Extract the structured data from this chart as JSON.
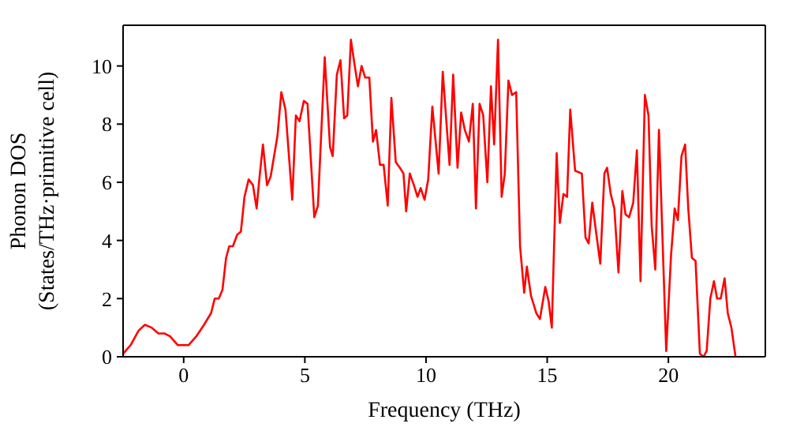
{
  "chart_data": {
    "type": "line",
    "xlabel": "Frequency (THz)",
    "ylabel": "Phonon DOS\n(States/THz·primitive cell)",
    "xlim": [
      -2.5,
      24
    ],
    "xticks": [
      0,
      5,
      10,
      15,
      20
    ],
    "ylim": [
      0,
      11.4
    ],
    "yticks": [
      0,
      2,
      4,
      6,
      8,
      10
    ],
    "marker": "none",
    "line_style": "solid",
    "series": [
      {
        "color": "#ff0000",
        "x": [
          -2.5,
          -2.4,
          -2.19,
          -1.86,
          -1.6,
          -1.32,
          -1.04,
          -0.78,
          -0.56,
          -0.24,
          0.2,
          0.52,
          0.84,
          1.13,
          1.28,
          1.45,
          1.6,
          1.75,
          1.88,
          2.03,
          2.21,
          2.36,
          2.51,
          2.68,
          2.86,
          3.01,
          3.12,
          3.27,
          3.44,
          3.59,
          3.87,
          4.03,
          4.2,
          4.48,
          4.63,
          4.78,
          4.96,
          5.11,
          5.39,
          5.54,
          5.82,
          6.04,
          6.15,
          6.32,
          6.47,
          6.62,
          6.75,
          6.9,
          7.06,
          7.19,
          7.34,
          7.49,
          7.66,
          7.81,
          7.94,
          8.1,
          8.25,
          8.42,
          8.57,
          8.75,
          8.92,
          9.07,
          9.18,
          9.33,
          9.5,
          9.65,
          9.78,
          9.94,
          10.09,
          10.26,
          10.52,
          10.69,
          10.97,
          11.12,
          11.3,
          11.45,
          11.6,
          11.77,
          11.93,
          12.06,
          12.21,
          12.36,
          12.53,
          12.68,
          12.81,
          12.97,
          13.12,
          13.25,
          13.4,
          13.55,
          13.72,
          13.88,
          14.05,
          14.16,
          14.33,
          14.55,
          14.7,
          14.92,
          15.06,
          15.19,
          15.39,
          15.52,
          15.67,
          15.82,
          15.95,
          16.15,
          16.43,
          16.58,
          16.71,
          16.86,
          17.03,
          17.19,
          17.36,
          17.47,
          17.62,
          17.77,
          17.94,
          18.1,
          18.23,
          18.38,
          18.55,
          18.7,
          18.85,
          19.03,
          19.18,
          19.31,
          19.46,
          19.61,
          19.74,
          19.91,
          20.11,
          20.26,
          20.39,
          20.54,
          20.69,
          20.82,
          20.97,
          21.12,
          21.3,
          21.45,
          21.58,
          21.73,
          21.88,
          22.01,
          22.16,
          22.32,
          22.45,
          22.6,
          22.77
        ],
        "values": [
          0.1,
          0.2,
          0.4,
          0.9,
          1.1,
          1.0,
          0.8,
          0.8,
          0.7,
          0.4,
          0.4,
          0.7,
          1.1,
          1.5,
          2.0,
          2.0,
          2.3,
          3.4,
          3.8,
          3.8,
          4.2,
          4.3,
          5.5,
          6.1,
          5.9,
          5.1,
          6.1,
          7.3,
          5.9,
          6.2,
          7.6,
          9.1,
          8.5,
          5.4,
          8.3,
          8.1,
          8.8,
          8.7,
          4.8,
          5.2,
          10.3,
          7.2,
          6.9,
          9.7,
          10.2,
          8.2,
          8.3,
          10.9,
          10.0,
          9.3,
          10.0,
          9.6,
          9.6,
          7.4,
          7.8,
          6.6,
          6.6,
          5.2,
          8.9,
          6.7,
          6.5,
          6.3,
          5.0,
          6.3,
          5.9,
          5.5,
          5.8,
          5.4,
          6.1,
          8.6,
          6.3,
          9.8,
          6.6,
          9.7,
          6.5,
          8.4,
          7.8,
          7.4,
          8.7,
          5.1,
          8.7,
          8.3,
          6.0,
          9.3,
          7.3,
          10.9,
          5.5,
          6.3,
          9.5,
          9.0,
          9.1,
          3.8,
          2.2,
          3.1,
          2.1,
          1.5,
          1.3,
          2.4,
          1.9,
          1.0,
          7.0,
          4.6,
          5.6,
          5.5,
          8.5,
          6.4,
          6.3,
          4.1,
          3.9,
          5.3,
          4.2,
          3.2,
          6.3,
          6.5,
          5.6,
          5.1,
          2.9,
          5.7,
          4.9,
          4.8,
          5.3,
          7.1,
          2.6,
          9.0,
          8.3,
          4.5,
          3.0,
          7.8,
          4.5,
          0.2,
          3.5,
          5.1,
          4.7,
          6.9,
          7.3,
          5.1,
          3.4,
          3.3,
          0.1,
          0.0,
          0.2,
          2.0,
          2.6,
          2.0,
          2.0,
          2.7,
          1.5,
          1.0,
          0.0
        ]
      }
    ]
  }
}
